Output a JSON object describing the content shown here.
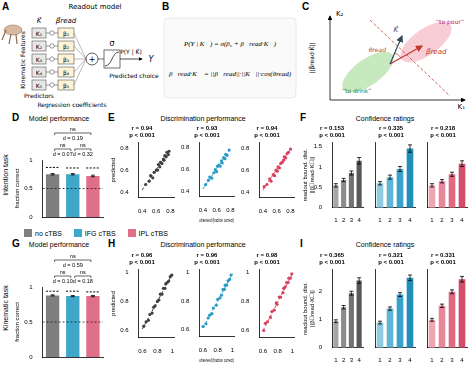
{
  "diagrams": {
    "A": {
      "letter": "A",
      "title": "Readout model",
      "features_label": "Kinematic Features",
      "k_vector": "K⃗",
      "beta_vector": "β⃗read",
      "predictors": [
        "K₁",
        "K₂",
        "K₃",
        "K₄",
        "K₅"
      ],
      "coefficients": [
        "β₁",
        "β₂",
        "β₃",
        "β₄",
        "β₅"
      ],
      "sum": "+",
      "sigma": "σ",
      "probability": "P(Y | K⃗)",
      "output": "Y",
      "labels": [
        "Predictors",
        "Regression coefficients",
        "Predicted choice"
      ]
    },
    "B": {
      "letter": "B",
      "equations": [
        "P(Y | K⃗) = σ(β₀ + β⃗read·K⃗)",
        "β⃗read·K⃗ = ||β⃗read||·||K⃗||·cos(θread)"
      ]
    },
    "C": {
      "letter": "C",
      "axes": [
        "K₁",
        "K₂"
      ],
      "classes": [
        "“to drink”",
        "“to pour”"
      ],
      "vectors": [
        "K⃗",
        "β⃗read"
      ],
      "angle": "θread",
      "projection": "||β⃗read·K⃗||"
    }
  },
  "panel_headers": [
    {
      "letter": "D",
      "title": "Model performance"
    },
    {
      "letter": "E",
      "title": "Discrimination performance"
    },
    {
      "letter": "F",
      "title": "Confidence ratings"
    },
    {
      "letter": "G",
      "title": "Model performance"
    },
    {
      "letter": "H",
      "title": "Discrimination performance"
    },
    {
      "letter": "I",
      "title": "Confidence ratings"
    }
  ],
  "row_labels": [
    "Intention task",
    "Kinematic task"
  ],
  "conditions": [
    {
      "name": "no cTBS",
      "color": "#7f7f7f"
    },
    {
      "name": "IFG cTBS",
      "color": "#3fa7c9"
    },
    {
      "name": "IPL cTBS",
      "color": "#e0708a"
    }
  ],
  "chart_data": [
    {
      "type": "bar",
      "categories": [
        null,
        null,
        null
      ],
      "values": [
        0.75,
        0.75,
        0.72
      ],
      "errors": [
        0.012,
        0.012,
        0.014
      ],
      "colors": [
        "#7f7f7f",
        "#3fa7c9",
        "#e0708a"
      ],
      "observed_values": [
        0.87,
        0.86,
        0.86
      ],
      "chance": 0.5,
      "ylabel": "fraction correct",
      "ylim": [
        0,
        1
      ],
      "yticks": [
        0,
        0.5,
        1
      ],
      "tick_labels": "y",
      "grid": false,
      "comparisons": [
        {
          "bars": [
            0,
            2
          ],
          "texts": [
            "ns",
            "d = 0.19"
          ]
        },
        {
          "bars": [
            0,
            1
          ],
          "texts": [
            "ns",
            "d = 0.07"
          ]
        },
        {
          "bars": [
            1,
            2
          ],
          "texts": [
            "ns",
            "d = 0.32"
          ]
        }
      ]
    },
    {
      "type": "scatter",
      "color": "#404040",
      "x": [
        0.45,
        0.5,
        0.52,
        0.55,
        0.57,
        0.6,
        0.62,
        0.63,
        0.65,
        0.66,
        0.68,
        0.7,
        0.71,
        0.72,
        0.74,
        0.75,
        0.77,
        0.78
      ],
      "values": [
        0.47,
        0.5,
        0.55,
        0.53,
        0.58,
        0.6,
        0.6,
        0.65,
        0.63,
        0.67,
        0.66,
        0.7,
        0.69,
        0.73,
        0.72,
        0.76,
        0.74,
        0.77
      ],
      "fit_line": {
        "x": [
          0.4,
          0.8
        ],
        "values": [
          0.42,
          0.79
        ]
      },
      "xlim": [
        0.35,
        0.85
      ],
      "ylim": [
        0.35,
        0.85
      ],
      "xticks": [
        0.4,
        0.6,
        0.8
      ],
      "yticks": [
        0.4,
        0.6,
        0.8
      ],
      "ylabel": "predicted",
      "annotations": [
        "r = 0.94",
        "p < 0.001"
      ],
      "grid": false
    },
    {
      "type": "scatter",
      "color": "#2a9cc4",
      "x": [
        0.44,
        0.48,
        0.5,
        0.53,
        0.56,
        0.58,
        0.6,
        0.61,
        0.63,
        0.65,
        0.67,
        0.68,
        0.7,
        0.72,
        0.73,
        0.75,
        0.78
      ],
      "values": [
        0.46,
        0.5,
        0.53,
        0.52,
        0.57,
        0.6,
        0.58,
        0.63,
        0.64,
        0.63,
        0.68,
        0.66,
        0.71,
        0.7,
        0.74,
        0.73,
        0.78
      ],
      "fit_line": {
        "x": [
          0.4,
          0.8
        ],
        "values": [
          0.42,
          0.79
        ]
      },
      "xlim": [
        0.35,
        0.85
      ],
      "ylim": [
        0.35,
        0.85
      ],
      "xticks": [
        0.4,
        0.6,
        0.8
      ],
      "yticks": [
        0.4,
        0.6,
        0.8
      ],
      "xlabel": "observed (fraction correct)",
      "annotations": [
        "r = 0.93",
        "p < 0.001"
      ],
      "grid": false
    },
    {
      "type": "scatter",
      "color": "#d9435f",
      "x": [
        0.42,
        0.46,
        0.5,
        0.52,
        0.55,
        0.57,
        0.59,
        0.61,
        0.62,
        0.64,
        0.66,
        0.68,
        0.7,
        0.71,
        0.73,
        0.75,
        0.77,
        0.8
      ],
      "values": [
        0.45,
        0.47,
        0.52,
        0.5,
        0.56,
        0.55,
        0.6,
        0.59,
        0.63,
        0.62,
        0.66,
        0.67,
        0.69,
        0.72,
        0.71,
        0.75,
        0.76,
        0.79
      ],
      "fit_line": {
        "x": [
          0.4,
          0.8
        ],
        "values": [
          0.42,
          0.79
        ]
      },
      "xlim": [
        0.35,
        0.85
      ],
      "ylim": [
        0.35,
        0.85
      ],
      "xticks": [
        0.4,
        0.6,
        0.8
      ],
      "yticks": [
        0.4,
        0.6,
        0.8
      ],
      "annotations": [
        "r = 0.94",
        "p < 0.001"
      ],
      "grid": false
    },
    {
      "type": "bar",
      "categories": [
        "1",
        "2",
        "3",
        "4"
      ],
      "values": [
        0.55,
        0.68,
        0.85,
        1.15
      ],
      "errors": [
        0.04,
        0.04,
        0.05,
        0.08
      ],
      "colors": [
        "#a6a6a6",
        "#8c8c8c",
        "#737373",
        "#595959"
      ],
      "ylabel": [
        "readout bound. dist.",
        "||β⃗read·K⃗||"
      ],
      "ylim": [
        0,
        1.6
      ],
      "yticks": [
        0,
        0.5,
        1,
        1.5
      ],
      "annotations": [
        "r = 0.153",
        "p < 0.001"
      ],
      "grid": false
    },
    {
      "type": "bar",
      "categories": [
        "1",
        "2",
        "3",
        "4"
      ],
      "values": [
        0.6,
        0.75,
        0.95,
        1.45
      ],
      "errors": [
        0.04,
        0.05,
        0.06,
        0.09
      ],
      "colors": [
        "#8fcbe0",
        "#5fb6d4",
        "#36a3c9",
        "#1f8fb8"
      ],
      "ylim": [
        0,
        1.6
      ],
      "yticks": [
        0,
        0.5,
        1,
        1.5
      ],
      "tick_labels": "x",
      "annotations": [
        "r = 0.335",
        "p < 0.001"
      ],
      "grid": false
    },
    {
      "type": "bar",
      "categories": [
        "1",
        "2",
        "3",
        "4"
      ],
      "values": [
        0.55,
        0.65,
        0.82,
        1.08
      ],
      "errors": [
        0.04,
        0.04,
        0.05,
        0.07
      ],
      "colors": [
        "#f0a5b3",
        "#e8879a",
        "#df6a81",
        "#d14d68"
      ],
      "ylim": [
        0,
        1.6
      ],
      "yticks": [
        0,
        0.5,
        1,
        1.5
      ],
      "tick_labels": "x",
      "annotations": [
        "r = 0.218",
        "p < 0.001"
      ],
      "grid": false
    },
    {
      "type": "bar",
      "categories": [
        null,
        null,
        null
      ],
      "values": [
        0.88,
        0.87,
        0.87
      ],
      "errors": [
        0.008,
        0.008,
        0.009
      ],
      "colors": [
        "#7f7f7f",
        "#3fa7c9",
        "#e0708a"
      ],
      "observed_values": [
        0.94,
        0.94,
        0.93
      ],
      "chance": 0.5,
      "ylabel": "fraction correct",
      "ylim": [
        0,
        1
      ],
      "yticks": [
        0,
        0.5,
        1
      ],
      "tick_labels": "y",
      "grid": false,
      "comparisons": [
        {
          "bars": [
            0,
            2
          ],
          "texts": [
            "ns",
            "d = 0.59"
          ]
        },
        {
          "bars": [
            0,
            1
          ],
          "texts": [
            "ns",
            "d = 0.10"
          ]
        },
        {
          "bars": [
            1,
            2
          ],
          "texts": [
            "ns",
            "d = 0.18"
          ]
        }
      ]
    },
    {
      "type": "scatter",
      "color": "#404040",
      "x": [
        0.62,
        0.65,
        0.68,
        0.7,
        0.73,
        0.75,
        0.77,
        0.8,
        0.82,
        0.84,
        0.86,
        0.88,
        0.9,
        0.91,
        0.93,
        0.95,
        0.97,
        0.99
      ],
      "values": [
        0.63,
        0.66,
        0.67,
        0.71,
        0.72,
        0.76,
        0.77,
        0.8,
        0.81,
        0.85,
        0.85,
        0.89,
        0.89,
        0.92,
        0.93,
        0.94,
        0.97,
        0.98
      ],
      "fit_line": {
        "x": [
          0.6,
          1
        ],
        "values": [
          0.61,
          0.99
        ]
      },
      "xlim": [
        0.55,
        1.02
      ],
      "ylim": [
        0.55,
        1.02
      ],
      "xticks": [
        0.6,
        0.8,
        1
      ],
      "yticks": [
        0.6,
        0.8,
        1
      ],
      "ylabel": "predicted",
      "annotations": [
        "r = 0.96",
        "p < 0.001"
      ],
      "grid": false
    },
    {
      "type": "scatter",
      "color": "#2a9cc4",
      "x": [
        0.6,
        0.64,
        0.67,
        0.69,
        0.72,
        0.74,
        0.78,
        0.8,
        0.83,
        0.85,
        0.87,
        0.89,
        0.9,
        0.92,
        0.94,
        0.96,
        0.98
      ],
      "values": [
        0.62,
        0.64,
        0.68,
        0.7,
        0.71,
        0.75,
        0.77,
        0.81,
        0.82,
        0.84,
        0.88,
        0.88,
        0.91,
        0.91,
        0.94,
        0.95,
        0.98
      ],
      "fit_line": {
        "x": [
          0.6,
          1
        ],
        "values": [
          0.61,
          0.99
        ]
      },
      "xlim": [
        0.55,
        1.02
      ],
      "ylim": [
        0.55,
        1.02
      ],
      "xticks": [
        0.6,
        0.8,
        1
      ],
      "yticks": [
        0.6,
        0.8,
        1
      ],
      "xlabel": "observed (fraction correct)",
      "annotations": [
        "r = 0.96",
        "p < 0.001"
      ],
      "grid": false
    },
    {
      "type": "scatter",
      "color": "#d9435f",
      "x": [
        0.61,
        0.63,
        0.66,
        0.7,
        0.72,
        0.75,
        0.78,
        0.79,
        0.82,
        0.84,
        0.87,
        0.88,
        0.9,
        0.92,
        0.94,
        0.95,
        0.97,
        0.99
      ],
      "values": [
        0.6,
        0.65,
        0.66,
        0.69,
        0.73,
        0.74,
        0.79,
        0.78,
        0.83,
        0.83,
        0.86,
        0.89,
        0.9,
        0.93,
        0.93,
        0.96,
        0.96,
        0.99
      ],
      "fit_line": {
        "x": [
          0.6,
          1
        ],
        "values": [
          0.6,
          0.99
        ]
      },
      "xlim": [
        0.55,
        1.02
      ],
      "ylim": [
        0.55,
        1.02
      ],
      "xticks": [
        0.6,
        0.8,
        1
      ],
      "yticks": [
        0.6,
        0.8,
        1
      ],
      "annotations": [
        "r = 0.98",
        "p < 0.001"
      ],
      "grid": false
    },
    {
      "type": "bar",
      "categories": [
        "1",
        "2",
        "3",
        "4"
      ],
      "values": [
        0.95,
        1.45,
        1.95,
        2.4
      ],
      "errors": [
        0.05,
        0.06,
        0.07,
        0.1
      ],
      "colors": [
        "#a6a6a6",
        "#8c8c8c",
        "#737373",
        "#595959"
      ],
      "ylabel": [
        "readout bound. dist.",
        "||β⃗read·K⃗||"
      ],
      "ylim": [
        0,
        2.8
      ],
      "yticks": [
        0,
        1,
        2
      ],
      "annotations": [
        "r = 0.365",
        "p < 0.001"
      ],
      "grid": false
    },
    {
      "type": "bar",
      "categories": [
        "1",
        "2",
        "3",
        "4"
      ],
      "values": [
        0.9,
        1.4,
        1.9,
        2.5
      ],
      "errors": [
        0.05,
        0.06,
        0.07,
        0.1
      ],
      "colors": [
        "#8fcbe0",
        "#5fb6d4",
        "#36a3c9",
        "#1f8fb8"
      ],
      "ylim": [
        0,
        2.8
      ],
      "yticks": [
        0,
        1,
        2
      ],
      "tick_labels": "x",
      "annotations": [
        "r = 0.321",
        "p < 0.001"
      ],
      "grid": false
    },
    {
      "type": "bar",
      "categories": [
        "1",
        "2",
        "3",
        "4"
      ],
      "values": [
        1.0,
        1.5,
        2.0,
        2.45
      ],
      "errors": [
        0.05,
        0.06,
        0.07,
        0.1
      ],
      "colors": [
        "#f0a5b3",
        "#e8879a",
        "#df6a81",
        "#d14d68"
      ],
      "ylim": [
        0,
        2.8
      ],
      "yticks": [
        0,
        1,
        2
      ],
      "tick_labels": "x",
      "annotations": [
        "r = 0.331",
        "p < 0.001"
      ],
      "grid": false
    }
  ]
}
